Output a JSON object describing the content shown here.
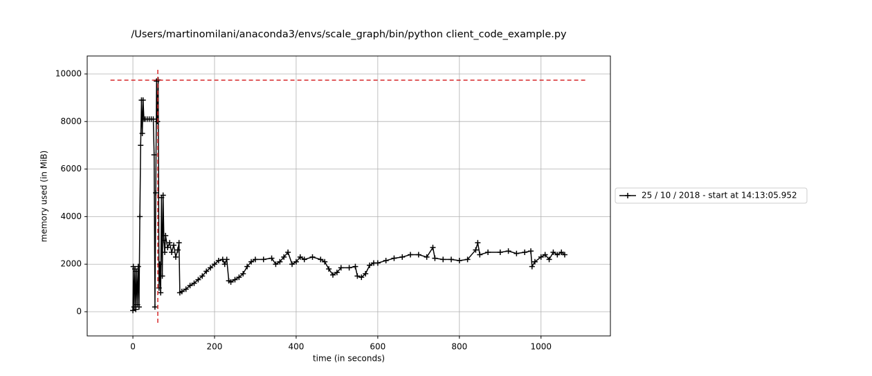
{
  "chart_data": {
    "type": "line",
    "title": "/Users/martinomilani/anaconda3/envs/scale_graph/bin/python client_code_example.py",
    "x_label": "time (in seconds)",
    "y_label": "memory used (in MiB)",
    "xlim": [
      -112,
      1170
    ],
    "ylim": [
      -1017,
      10756
    ],
    "xticks": [
      0,
      200,
      400,
      600,
      800,
      1000
    ],
    "yticks": [
      0,
      2000,
      4000,
      6000,
      8000,
      10000
    ],
    "grid": true,
    "legend": "outside-right",
    "x": [
      0,
      1,
      3,
      5,
      7,
      9,
      11,
      13,
      15,
      17,
      19,
      21,
      23,
      25,
      27,
      30,
      35,
      40,
      45,
      50,
      52,
      54,
      56,
      58,
      60,
      62,
      64,
      66,
      68,
      70,
      72,
      74,
      76,
      78,
      80,
      85,
      90,
      95,
      100,
      105,
      110,
      113,
      115,
      120,
      130,
      140,
      150,
      160,
      170,
      180,
      190,
      200,
      210,
      220,
      225,
      230,
      235,
      240,
      250,
      260,
      270,
      280,
      290,
      300,
      320,
      340,
      350,
      360,
      370,
      380,
      390,
      400,
      410,
      420,
      440,
      460,
      470,
      480,
      490,
      500,
      510,
      530,
      545,
      550,
      560,
      570,
      580,
      590,
      600,
      620,
      640,
      660,
      680,
      700,
      720,
      735,
      740,
      760,
      780,
      800,
      820,
      840,
      845,
      850,
      870,
      900,
      920,
      940,
      960,
      975,
      978,
      985,
      1000,
      1010,
      1020,
      1030,
      1040,
      1050,
      1058
    ],
    "series": [
      {
        "name": "25 / 10 / 2018 - start at 14:13:05.952",
        "color": "#000000",
        "values": [
          50,
          1900,
          200,
          1800,
          100,
          1700,
          300,
          1900,
          200,
          4000,
          7000,
          8900,
          7500,
          8900,
          8100,
          8100,
          8100,
          8100,
          8100,
          8100,
          6600,
          200,
          5000,
          9700,
          8000,
          9750,
          1000,
          2000,
          800,
          4800,
          1500,
          4900,
          3000,
          2500,
          3200,
          2700,
          2900,
          2500,
          2800,
          2300,
          2600,
          2900,
          800,
          850,
          950,
          1100,
          1200,
          1350,
          1500,
          1700,
          1850,
          2000,
          2150,
          2200,
          2000,
          2200,
          1300,
          1250,
          1350,
          1450,
          1600,
          1900,
          2100,
          2200,
          2200,
          2250,
          2000,
          2100,
          2300,
          2500,
          2000,
          2100,
          2300,
          2200,
          2300,
          2200,
          2100,
          1800,
          1550,
          1650,
          1850,
          1850,
          1900,
          1500,
          1450,
          1600,
          1950,
          2050,
          2050,
          2150,
          2250,
          2300,
          2400,
          2400,
          2300,
          2700,
          2250,
          2200,
          2200,
          2150,
          2200,
          2600,
          2900,
          2400,
          2500,
          2500,
          2550,
          2450,
          2500,
          2550,
          1900,
          2100,
          2300,
          2400,
          2200,
          2500,
          2400,
          2500,
          2400
        ]
      }
    ],
    "hlines": [
      {
        "y": 9740,
        "xmin": -55,
        "xmax": 1110,
        "color": "#d62728"
      }
    ],
    "vlines": [
      {
        "x": 61,
        "ymin": -465,
        "ymax": 10200,
        "color": "#d62728"
      }
    ]
  }
}
